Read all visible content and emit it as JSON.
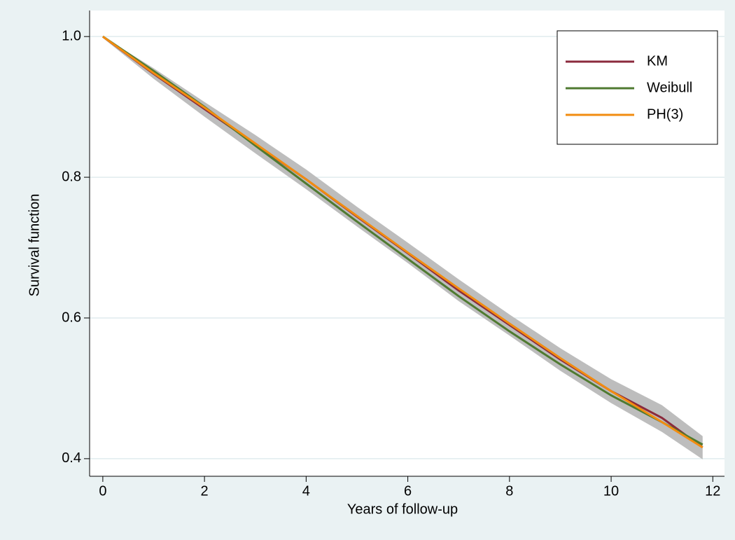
{
  "chart_data": {
    "type": "line",
    "x_label": "Years of follow-up",
    "y_label": "Survival function",
    "x": [
      0,
      1,
      2,
      3,
      4,
      5,
      6,
      7,
      8,
      9,
      10,
      11,
      11.8
    ],
    "series": [
      {
        "name": "KM",
        "color": "#8b2a3c",
        "values": [
          1.0,
          0.947,
          0.897,
          0.847,
          0.797,
          0.744,
          0.692,
          0.639,
          0.59,
          0.541,
          0.496,
          0.458,
          0.416
        ]
      },
      {
        "name": "Weibull",
        "color": "#4f7a30",
        "values": [
          1.0,
          0.951,
          0.9,
          0.845,
          0.791,
          0.737,
          0.684,
          0.631,
          0.581,
          0.534,
          0.49,
          0.452,
          0.42
        ]
      },
      {
        "name": "PH(3)",
        "color": "#f28c10",
        "values": [
          1.0,
          0.948,
          0.899,
          0.848,
          0.797,
          0.745,
          0.693,
          0.642,
          0.592,
          0.543,
          0.496,
          0.452,
          0.416
        ]
      }
    ],
    "band": {
      "color": "#bdbdbd",
      "lower": [
        0.998,
        0.94,
        0.886,
        0.834,
        0.783,
        0.73,
        0.678,
        0.624,
        0.575,
        0.525,
        0.479,
        0.438,
        0.399
      ],
      "upper": [
        1.0,
        0.955,
        0.907,
        0.86,
        0.811,
        0.758,
        0.707,
        0.655,
        0.605,
        0.557,
        0.513,
        0.476,
        0.432
      ]
    },
    "xlim": [
      -0.26,
      12.23
    ],
    "ylim": [
      0.375,
      1.037
    ],
    "xticks": [
      0,
      2,
      4,
      6,
      8,
      10,
      12
    ],
    "yticks": [
      {
        "value": 1,
        "label": "1.0"
      },
      0.8,
      0.6,
      0.4
    ],
    "grid": true,
    "legend": "top-right"
  }
}
